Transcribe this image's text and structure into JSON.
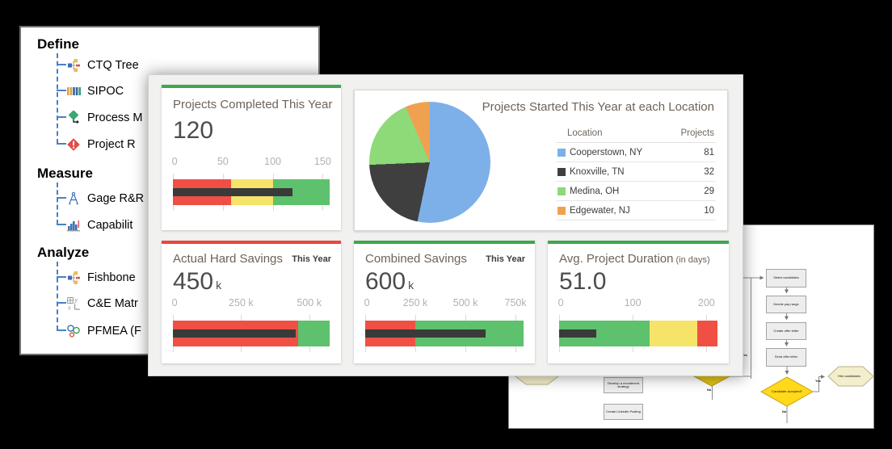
{
  "left_panel": {
    "sections": [
      {
        "label": "Define",
        "items": [
          {
            "label": "CTQ Tree",
            "icon": "ctq-tree-icon"
          },
          {
            "label": "SIPOC",
            "icon": "sipoc-icon"
          },
          {
            "label": "Process M",
            "icon": "process-map-icon"
          },
          {
            "label": "Project R",
            "icon": "project-risk-icon"
          }
        ]
      },
      {
        "label": "Measure",
        "items": [
          {
            "label": "Gage R&R",
            "icon": "gage-rr-icon"
          },
          {
            "label": "Capabilit",
            "icon": "capability-icon"
          }
        ]
      },
      {
        "label": "Analyze",
        "items": [
          {
            "label": "Fishbone",
            "icon": "fishbone-icon"
          },
          {
            "label": "C&E Matr",
            "icon": "ce-matrix-icon"
          },
          {
            "label": "PFMEA (F",
            "icon": "pfmea-icon"
          }
        ]
      }
    ]
  },
  "chart_data": [
    {
      "type": "bullet",
      "title": "Projects Completed This Year",
      "period": "",
      "title_suffix": "",
      "value": 120,
      "value_label": "120",
      "unit": "",
      "accent_color": "#3fa74d",
      "axis_max": 157,
      "bar_color": "#3a3a3a",
      "ticks": [
        {
          "v": 0,
          "label": "0"
        },
        {
          "v": 50,
          "label": "50"
        },
        {
          "v": 100,
          "label": "100"
        },
        {
          "v": 150,
          "label": "150"
        }
      ],
      "zones": [
        {
          "to": 58,
          "color": "#f04f44"
        },
        {
          "to": 100,
          "color": "#f6e36a"
        },
        {
          "to": 157,
          "color": "#5dc16d"
        }
      ]
    },
    {
      "type": "pie",
      "title": "Projects Started This Year at each Location",
      "legend": {
        "headers": [
          "Location",
          "Projects"
        ]
      },
      "slices": [
        {
          "label": "Cooperstown, NY",
          "value": 81,
          "color": "#7db0e8"
        },
        {
          "label": "Knoxville, TN",
          "value": 32,
          "color": "#3f3f3f"
        },
        {
          "label": "Medina, OH",
          "value": 29,
          "color": "#8ed978"
        },
        {
          "label": "Edgewater, NJ",
          "value": 10,
          "color": "#f0a150"
        }
      ]
    },
    {
      "type": "bullet",
      "title": "Actual Hard Savings",
      "period": "This Year",
      "title_suffix": "",
      "value": 450,
      "value_label": "450",
      "unit": "k",
      "accent_color": "#e8473d",
      "axis_max": 575,
      "bar_color": "#3a3a3a",
      "ticks": [
        {
          "v": 0,
          "label": "0"
        },
        {
          "v": 250,
          "label": "250 k"
        },
        {
          "v": 500,
          "label": "500 k"
        }
      ],
      "zones": [
        {
          "to": 460,
          "color": "#f04f44"
        },
        {
          "to": 575,
          "color": "#5dc16d"
        }
      ]
    },
    {
      "type": "bullet",
      "title": "Combined Savings",
      "period": "This Year",
      "title_suffix": "",
      "value": 600,
      "value_label": "600",
      "unit": "k",
      "accent_color": "#3fa74d",
      "axis_max": 790,
      "bar_color": "#3a3a3a",
      "ticks": [
        {
          "v": 0,
          "label": "0"
        },
        {
          "v": 250,
          "label": "250 k"
        },
        {
          "v": 500,
          "label": "500 k"
        },
        {
          "v": 750,
          "label": "750k"
        }
      ],
      "zones": [
        {
          "to": 250,
          "color": "#f04f44"
        },
        {
          "to": 790,
          "color": "#5dc16d"
        }
      ]
    },
    {
      "type": "bullet",
      "title": "Avg. Project Duration",
      "period": "",
      "title_suffix": "(in days)",
      "value": 51,
      "value_label": "51.0",
      "unit": "",
      "accent_color": "#3fa74d",
      "axis_max": 215,
      "bar_color": "#3a3a3a",
      "ticks": [
        {
          "v": 0,
          "label": "0"
        },
        {
          "v": 100,
          "label": "100"
        },
        {
          "v": 200,
          "label": "200"
        }
      ],
      "zones": [
        {
          "to": 123,
          "color": "#5dc16d"
        },
        {
          "to": 188,
          "color": "#f6e36a"
        },
        {
          "to": 215,
          "color": "#f04f44"
        }
      ]
    }
  ],
  "flowchart": {
    "nodes": {
      "select": {
        "label": "Select candidates"
      },
      "pay": {
        "label": "Decide pay range"
      },
      "offer": {
        "label": "Create offer letter"
      },
      "send": {
        "label": "Send offer letter"
      },
      "accepted": {
        "label": "Candidate accepted?"
      },
      "hire": {
        "label": "Hire candidates"
      },
      "develop": {
        "label": "Develop a recruitment strategy"
      },
      "posting": {
        "label": "Create LinkedIn Posting"
      }
    },
    "edge_labels": {
      "yes_feedback": "Yes",
      "yes_hire": "Yes",
      "no_accepted": "No",
      "no_hidden": "No"
    }
  }
}
